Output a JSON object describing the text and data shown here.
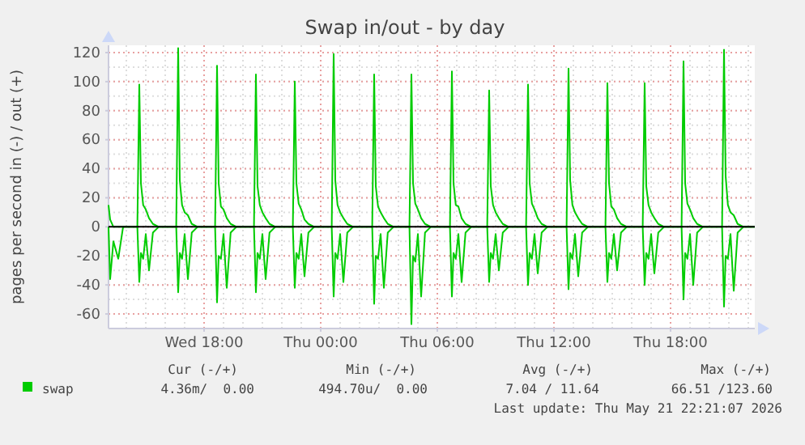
{
  "chart_data": {
    "type": "line",
    "title": "Swap in/out - by day",
    "ylabel": "pages per second in (-) / out (+)",
    "x": [
      "2026-05-20T13:05",
      "2026-05-20T13:10",
      "2026-05-20T13:20",
      "2026-05-20T13:35",
      "2026-05-20T13:50",
      "2026-05-20T14:34",
      "2026-05-20T14:40",
      "2026-05-20T14:45",
      "2026-05-20T14:52",
      "2026-05-20T15:00",
      "2026-05-20T15:10",
      "2026-05-20T15:22",
      "2026-05-20T15:40",
      "2026-05-20T16:34",
      "2026-05-20T16:40",
      "2026-05-20T16:45",
      "2026-05-20T16:52",
      "2026-05-20T17:00",
      "2026-05-20T17:10",
      "2026-05-20T17:22",
      "2026-05-20T17:40",
      "2026-05-20T18:34",
      "2026-05-20T18:40",
      "2026-05-20T18:45",
      "2026-05-20T18:52",
      "2026-05-20T19:00",
      "2026-05-20T19:10",
      "2026-05-20T19:22",
      "2026-05-20T19:40",
      "2026-05-20T20:34",
      "2026-05-20T20:40",
      "2026-05-20T20:45",
      "2026-05-20T20:52",
      "2026-05-20T21:00",
      "2026-05-20T21:10",
      "2026-05-20T21:22",
      "2026-05-20T21:40",
      "2026-05-20T22:34",
      "2026-05-20T22:40",
      "2026-05-20T22:45",
      "2026-05-20T22:52",
      "2026-05-20T23:00",
      "2026-05-20T23:10",
      "2026-05-20T23:22",
      "2026-05-20T23:40",
      "2026-05-21T00:34",
      "2026-05-21T00:40",
      "2026-05-21T00:45",
      "2026-05-21T00:52",
      "2026-05-21T01:00",
      "2026-05-21T01:10",
      "2026-05-21T01:22",
      "2026-05-21T01:40",
      "2026-05-21T02:39",
      "2026-05-21T02:45",
      "2026-05-21T02:50",
      "2026-05-21T02:57",
      "2026-05-21T03:05",
      "2026-05-21T03:15",
      "2026-05-21T03:27",
      "2026-05-21T03:45",
      "2026-05-21T04:34",
      "2026-05-21T04:40",
      "2026-05-21T04:45",
      "2026-05-21T04:52",
      "2026-05-21T05:00",
      "2026-05-21T05:10",
      "2026-05-21T05:22",
      "2026-05-21T05:40",
      "2026-05-21T06:39",
      "2026-05-21T06:45",
      "2026-05-21T06:50",
      "2026-05-21T06:57",
      "2026-05-21T07:05",
      "2026-05-21T07:15",
      "2026-05-21T07:27",
      "2026-05-21T07:45",
      "2026-05-21T08:34",
      "2026-05-21T08:40",
      "2026-05-21T08:45",
      "2026-05-21T08:52",
      "2026-05-21T09:00",
      "2026-05-21T09:10",
      "2026-05-21T09:22",
      "2026-05-21T09:40",
      "2026-05-21T10:34",
      "2026-05-21T10:40",
      "2026-05-21T10:45",
      "2026-05-21T10:52",
      "2026-05-21T11:00",
      "2026-05-21T11:10",
      "2026-05-21T11:22",
      "2026-05-21T11:40",
      "2026-05-21T12:39",
      "2026-05-21T12:45",
      "2026-05-21T12:50",
      "2026-05-21T12:57",
      "2026-05-21T13:05",
      "2026-05-21T13:15",
      "2026-05-21T13:27",
      "2026-05-21T13:45",
      "2026-05-21T14:39",
      "2026-05-21T14:45",
      "2026-05-21T14:50",
      "2026-05-21T14:57",
      "2026-05-21T15:05",
      "2026-05-21T15:15",
      "2026-05-21T15:27",
      "2026-05-21T15:45",
      "2026-05-21T16:34",
      "2026-05-21T16:40",
      "2026-05-21T16:45",
      "2026-05-21T16:52",
      "2026-05-21T17:00",
      "2026-05-21T17:10",
      "2026-05-21T17:22",
      "2026-05-21T17:40",
      "2026-05-21T18:34",
      "2026-05-21T18:40",
      "2026-05-21T18:45",
      "2026-05-21T18:52",
      "2026-05-21T19:00",
      "2026-05-21T19:10",
      "2026-05-21T19:22",
      "2026-05-21T19:40",
      "2026-05-21T20:39",
      "2026-05-21T20:45",
      "2026-05-21T20:50",
      "2026-05-21T20:57",
      "2026-05-21T21:05",
      "2026-05-21T21:15",
      "2026-05-21T21:27",
      "2026-05-21T21:45",
      "2026-05-21T22:20"
    ],
    "series": [
      {
        "name": "swap",
        "color": "#00cc00",
        "values": [
          15,
          5,
          0,
          0,
          0,
          0,
          98,
          30,
          15,
          12,
          6,
          2,
          0,
          0,
          123,
          32,
          15,
          10,
          8,
          2,
          0,
          0,
          111,
          30,
          14,
          12,
          6,
          2,
          0,
          0,
          105,
          28,
          15,
          10,
          6,
          2,
          0,
          0,
          100,
          30,
          16,
          12,
          5,
          2,
          0,
          0,
          119,
          32,
          15,
          10,
          6,
          2,
          0,
          0,
          105,
          28,
          14,
          10,
          6,
          2,
          0,
          0,
          105,
          30,
          16,
          12,
          6,
          2,
          0,
          0,
          107,
          30,
          15,
          14,
          6,
          2,
          0,
          0,
          94,
          28,
          15,
          10,
          6,
          2,
          0,
          0,
          98,
          30,
          16,
          12,
          6,
          2,
          0,
          0,
          109,
          32,
          15,
          10,
          6,
          2,
          0,
          0,
          99,
          30,
          14,
          12,
          6,
          2,
          0,
          0,
          99,
          28,
          15,
          10,
          6,
          2,
          0,
          0,
          114,
          30,
          16,
          12,
          6,
          2,
          0,
          0,
          122,
          35,
          15,
          10,
          8,
          2,
          0,
          0
        ]
      },
      {
        "color": "#00cc00",
        "values": [
          0,
          -36,
          -10,
          -22,
          0,
          0,
          -38,
          -18,
          -22,
          -5,
          -30,
          -4,
          0,
          0,
          -45,
          -18,
          -22,
          -5,
          -36,
          -4,
          0,
          0,
          -52,
          -20,
          -22,
          -5,
          -42,
          -4,
          0,
          0,
          -45,
          -18,
          -22,
          -5,
          -36,
          -4,
          0,
          0,
          -42,
          -18,
          -22,
          -5,
          -34,
          -4,
          0,
          0,
          -48,
          -18,
          -22,
          -5,
          -38,
          -4,
          0,
          0,
          -53,
          -20,
          -22,
          -5,
          -42,
          -4,
          0,
          0,
          -67,
          -20,
          -24,
          -5,
          -48,
          -4,
          0,
          0,
          -48,
          -18,
          -22,
          -5,
          -38,
          -4,
          0,
          0,
          -38,
          -18,
          -22,
          -5,
          -30,
          -4,
          0,
          0,
          -40,
          -18,
          -22,
          -5,
          -32,
          -4,
          0,
          0,
          -43,
          -18,
          -22,
          -5,
          -34,
          -4,
          0,
          0,
          -38,
          -18,
          -22,
          -5,
          -30,
          -4,
          0,
          0,
          -40,
          -18,
          -22,
          -5,
          -32,
          -4,
          0,
          0,
          -50,
          -18,
          -22,
          -5,
          -40,
          -4,
          0,
          0,
          -55,
          -20,
          -22,
          -5,
          -44,
          -4,
          0,
          0
        ]
      }
    ],
    "xlim": [
      "2026-05-20T13:05",
      "2026-05-21T22:20"
    ],
    "xticks": [
      {
        "value": "2026-05-20T18:00",
        "label": "Wed 18:00"
      },
      {
        "value": "2026-05-21T00:00",
        "label": "Thu 00:00"
      },
      {
        "value": "2026-05-21T06:00",
        "label": "Thu 06:00"
      },
      {
        "value": "2026-05-21T12:00",
        "label": "Thu 12:00"
      },
      {
        "value": "2026-05-21T18:00",
        "label": "Thu 18:00"
      }
    ],
    "ylim": [
      -70,
      125
    ],
    "yticks": [
      -60,
      -40,
      -20,
      0,
      20,
      40,
      60,
      80,
      100,
      120
    ],
    "grid": true,
    "legend": "bottom left",
    "annotations": [
      "Cur (-/+)",
      "Min (-/+)",
      "Avg (-/+)",
      "Max (-/+)",
      "4.36m/  0.00",
      "494.70u/  0.00",
      "7.04 / 11.64",
      "66.51 /123.60",
      "Last update: Thu May 21 22:21:07 2026"
    ]
  }
}
